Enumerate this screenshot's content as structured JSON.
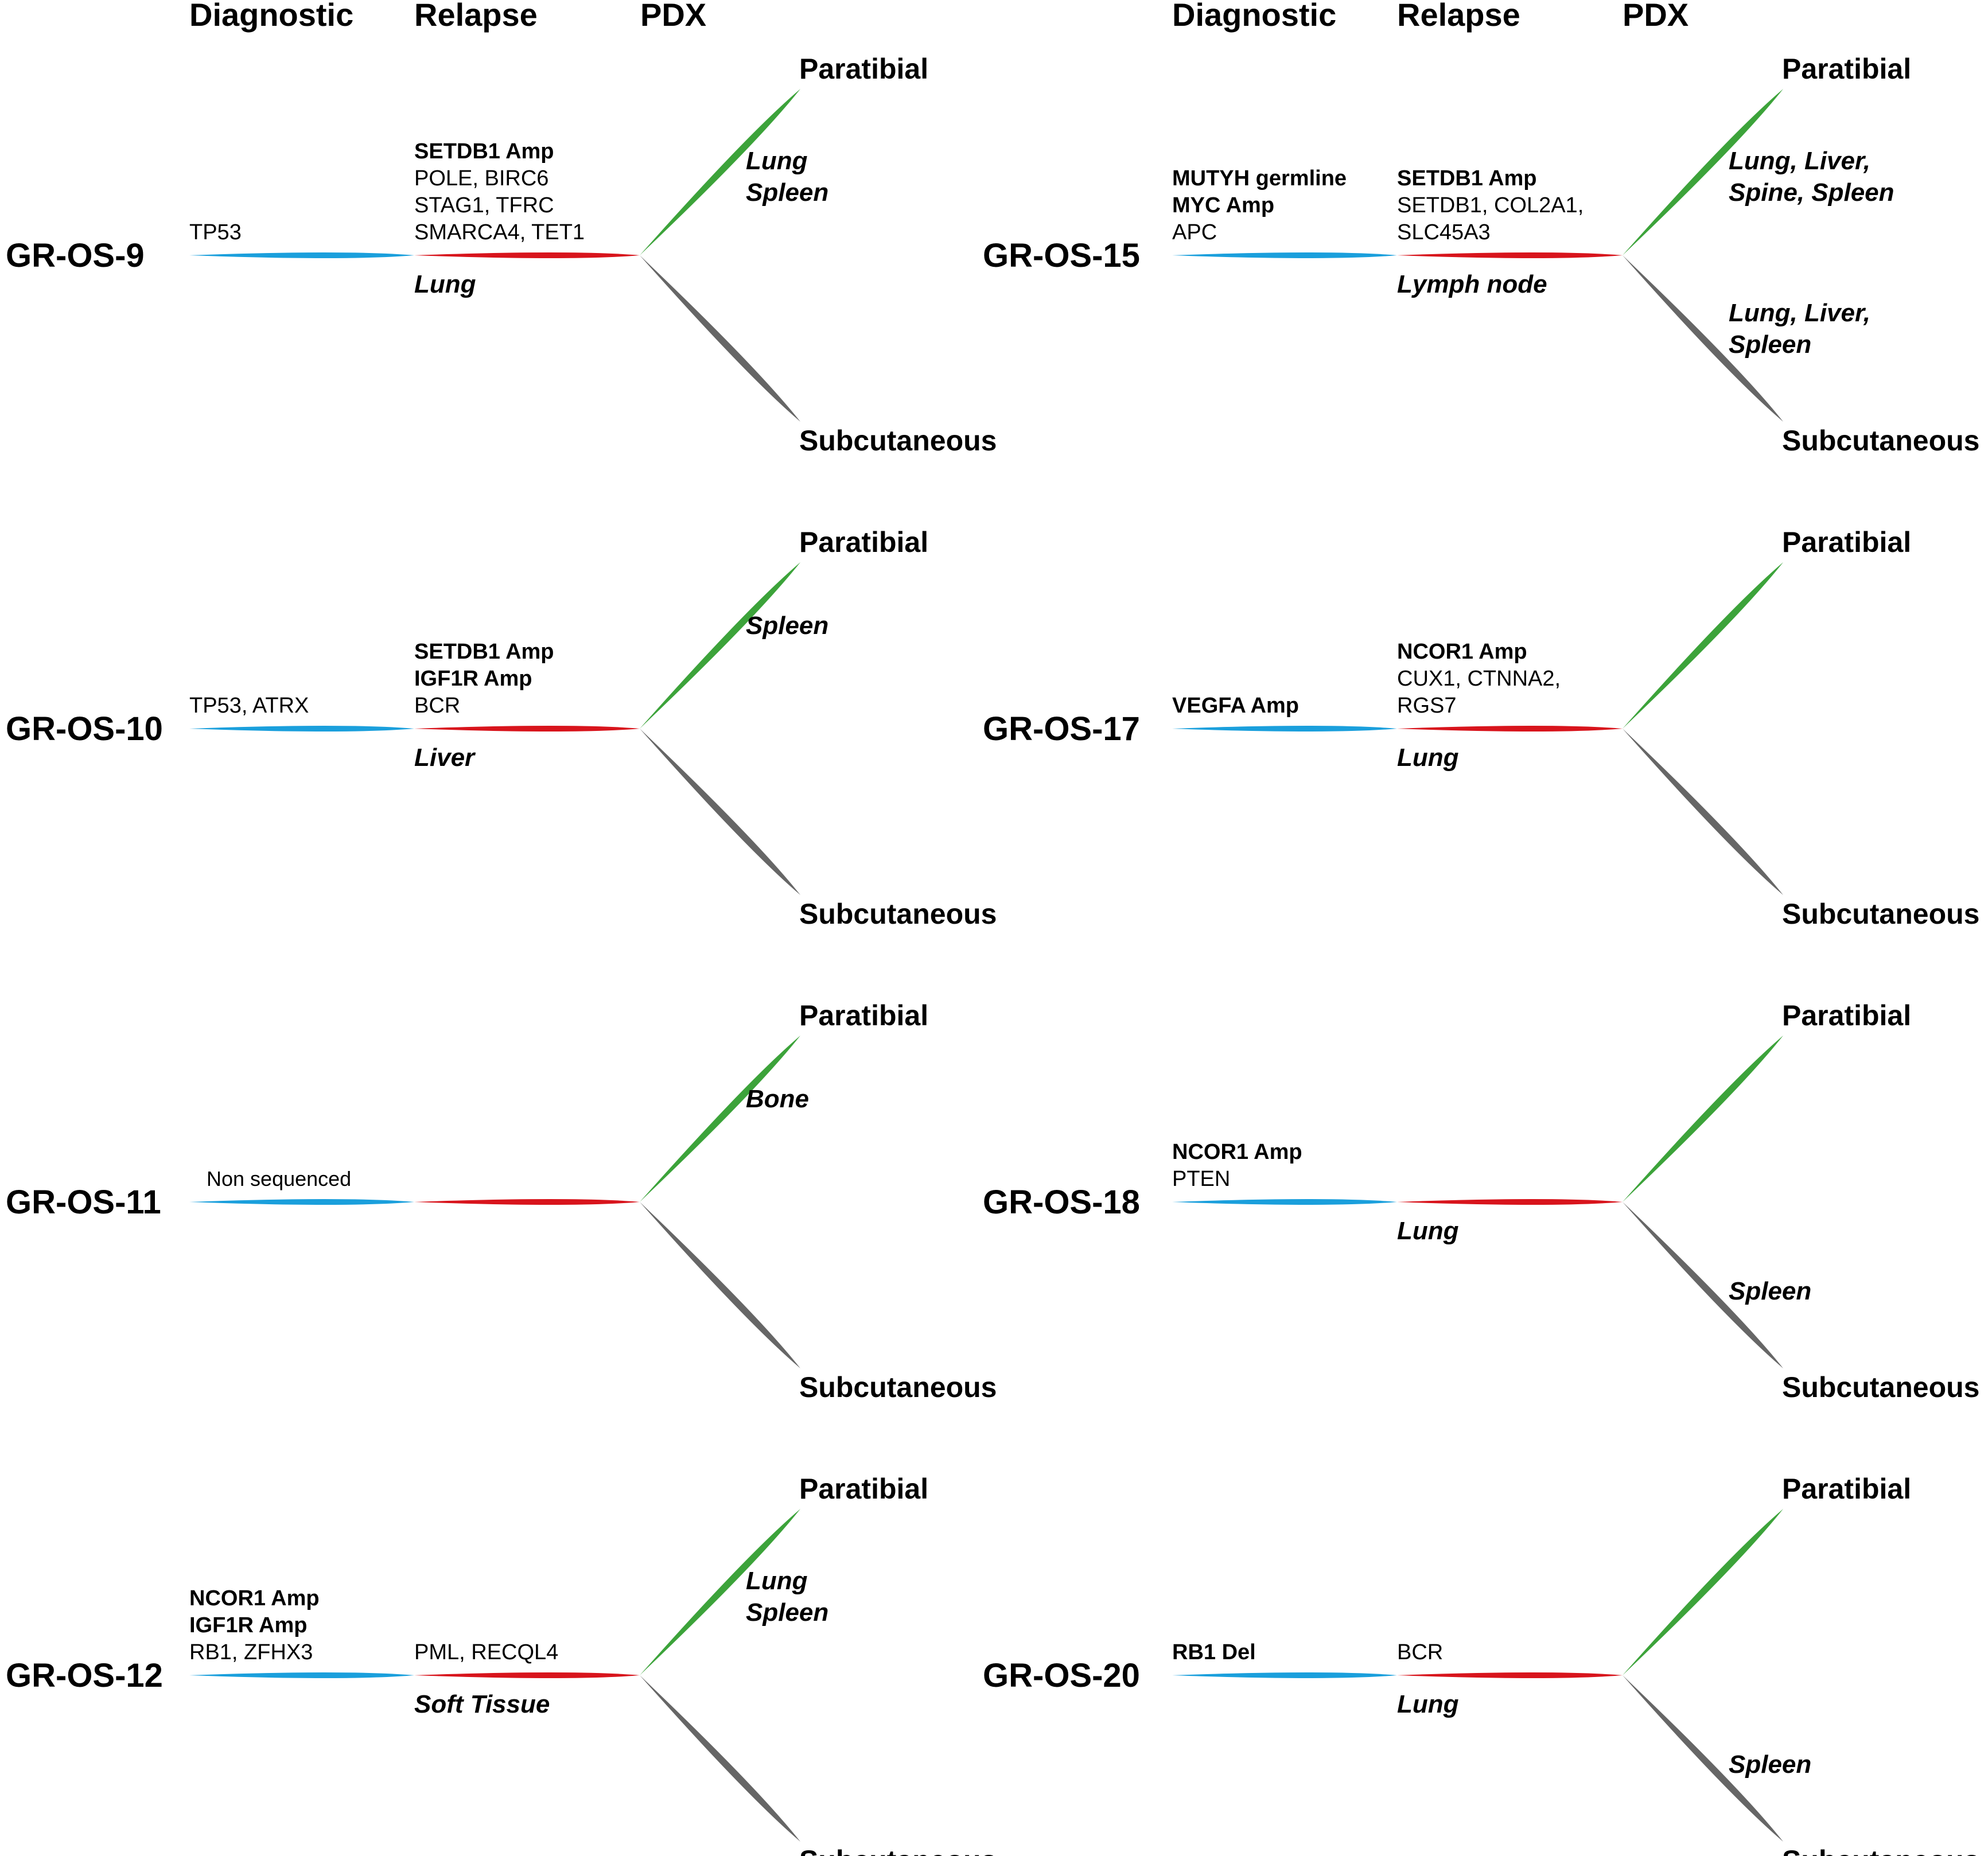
{
  "colors": {
    "diagnostic": "#1a9fdc",
    "relapse": "#d8141c",
    "paratibial": "#3ca33a",
    "subcutaneous": "#666666"
  },
  "headers": {
    "diagnostic": "Diagnostic",
    "relapse": "Relapse",
    "pdx": "PDX"
  },
  "destinations": {
    "paratibial": "Paratibial",
    "subcutaneous": "Subcutaneous"
  },
  "cases": [
    {
      "id": "GR-OS-9",
      "diagnostic": [
        {
          "text": "TP53",
          "bold": false
        }
      ],
      "relapse": [
        {
          "text": "SETDB1 Amp",
          "bold": true
        },
        {
          "text": "POLE, BIRC6",
          "bold": false
        },
        {
          "text": "STAG1, TFRC",
          "bold": false
        },
        {
          "text": "SMARCA4, TET1",
          "bold": false
        }
      ],
      "relapse_site": "Lung",
      "paratibial_sites": [
        "Lung",
        "Spleen"
      ],
      "subcutaneous_sites": []
    },
    {
      "id": "GR-OS-10",
      "diagnostic": [
        {
          "text": "TP53, ATRX",
          "bold": false
        }
      ],
      "relapse": [
        {
          "text": "SETDB1 Amp",
          "bold": true
        },
        {
          "text": "IGF1R Amp",
          "bold": true
        },
        {
          "text": "BCR",
          "bold": false
        }
      ],
      "relapse_site": "Liver",
      "paratibial_sites": [
        "Spleen"
      ],
      "subcutaneous_sites": []
    },
    {
      "id": "GR-OS-11",
      "diagnostic": [
        {
          "text": "Non sequenced",
          "bold": false,
          "small": true
        }
      ],
      "relapse": [],
      "relapse_site": "",
      "paratibial_sites": [
        "Bone"
      ],
      "subcutaneous_sites": []
    },
    {
      "id": "GR-OS-12",
      "diagnostic": [
        {
          "text": "NCOR1 Amp",
          "bold": true
        },
        {
          "text": "IGF1R Amp",
          "bold": true
        },
        {
          "text": "RB1, ZFHX3",
          "bold": false
        }
      ],
      "relapse": [
        {
          "text": "PML, RECQL4",
          "bold": false
        }
      ],
      "relapse_site": "Soft Tissue",
      "paratibial_sites": [
        "Lung",
        "Spleen"
      ],
      "subcutaneous_sites": []
    },
    {
      "id": "GR-OS-15",
      "diagnostic": [
        {
          "text": "MUTYH germline",
          "bold": true
        },
        {
          "text": "MYC Amp",
          "bold": true
        },
        {
          "text": "APC",
          "bold": false
        }
      ],
      "relapse": [
        {
          "text": "SETDB1 Amp",
          "bold": true
        },
        {
          "text": "SETDB1, COL2A1,",
          "bold": false
        },
        {
          "text": "SLC45A3",
          "bold": false
        }
      ],
      "relapse_site": "Lymph node",
      "paratibial_sites": [
        "Lung, Liver,",
        "Spine, Spleen"
      ],
      "subcutaneous_sites": [
        "Lung, Liver,",
        "Spleen"
      ]
    },
    {
      "id": "GR-OS-17",
      "diagnostic": [
        {
          "text": "VEGFA Amp",
          "bold": true
        }
      ],
      "relapse": [
        {
          "text": "NCOR1 Amp",
          "bold": true
        },
        {
          "text": "CUX1, CTNNA2,",
          "bold": false
        },
        {
          "text": "RGS7",
          "bold": false
        }
      ],
      "relapse_site": "Lung",
      "paratibial_sites": [],
      "subcutaneous_sites": []
    },
    {
      "id": "GR-OS-18",
      "diagnostic": [
        {
          "text": "NCOR1 Amp",
          "bold": true
        },
        {
          "text": "PTEN",
          "bold": false
        }
      ],
      "relapse": [],
      "relapse_site": "Lung",
      "paratibial_sites": [],
      "subcutaneous_sites": [
        "Spleen"
      ]
    },
    {
      "id": "GR-OS-20",
      "diagnostic": [
        {
          "text": "RB1 Del",
          "bold": true
        }
      ],
      "relapse": [
        {
          "text": "BCR",
          "bold": false
        }
      ],
      "relapse_site": "Lung",
      "paratibial_sites": [],
      "subcutaneous_sites": [
        "Spleen"
      ]
    }
  ]
}
